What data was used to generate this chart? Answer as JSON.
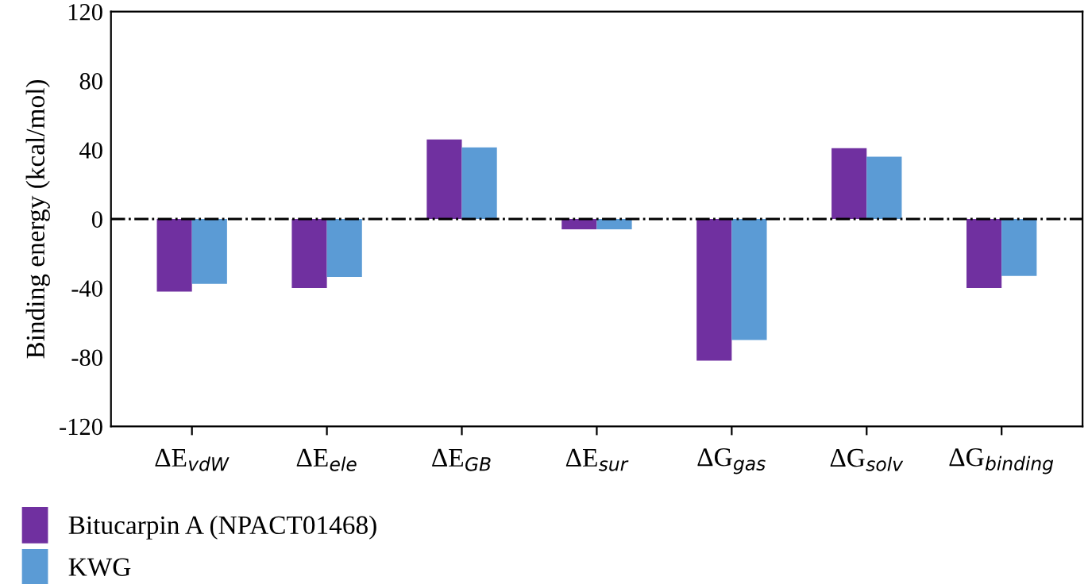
{
  "chart_data": {
    "type": "bar",
    "ylabel": "Binding energy (kcal/mol)",
    "categories": [
      "ΔE$_{vdW}$",
      "ΔE$_{ele}$",
      "ΔE$_{GB}$",
      "ΔE$_{sur}$",
      "ΔG$_{gas}$",
      "ΔG$_{solv}$",
      "ΔG$_{binding}$"
    ],
    "series": [
      {
        "name": "Bitucarpin A (NPACT01468)",
        "color": "#7030a0",
        "values": [
          -42,
          -40,
          46,
          -6,
          -82,
          41,
          -40
        ]
      },
      {
        "name": "KWG",
        "color": "#5b9bd5",
        "values": [
          -37.5,
          -33.5,
          41.5,
          -6,
          -70,
          36,
          -33
        ]
      }
    ],
    "ylim": [
      -120,
      120
    ],
    "yticks": [
      -120,
      -80,
      -40,
      0,
      40,
      80,
      120
    ],
    "ref_lines": [
      {
        "axis": "y",
        "value": 0,
        "color": "#000000",
        "line_style": "dashdot"
      }
    ],
    "grid": false,
    "legend": "bottom left"
  }
}
